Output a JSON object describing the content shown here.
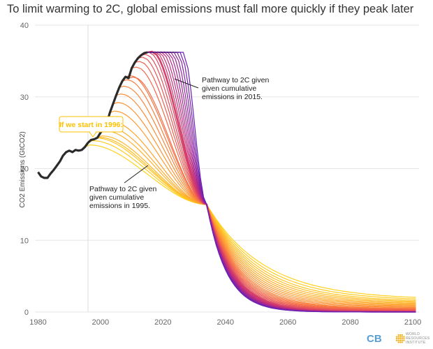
{
  "title": "To limit warming to 2C, global emissions must fall more quickly if they peak later",
  "colors": {
    "historical": "#2b2b2b",
    "pathway_early": "#ffd21f",
    "pathway_late": "#6a1fb5",
    "callout": "#ffc000",
    "grid": "#e6e6e6"
  },
  "chart_data": {
    "type": "line",
    "title": "To limit warming to 2C, global emissions must fall more quickly if they peak later",
    "xlabel": "",
    "ylabel": "CO2 Emissions (GtCO2)",
    "xlim": [
      1979,
      2102
    ],
    "ylim": [
      0,
      40
    ],
    "x_ticks": [
      "1980",
      "2000",
      "2020",
      "2040",
      "2060",
      "2080",
      "2100"
    ],
    "y_ticks": [
      "0",
      "10",
      "20",
      "30",
      "40"
    ],
    "grid": "horizontal",
    "historical": {
      "x": [
        1980,
        1981,
        1982,
        1983,
        1984,
        1985,
        1986,
        1987,
        1988,
        1989,
        1990,
        1991,
        1992,
        1993,
        1994,
        1995,
        1996,
        1997,
        1998,
        1999,
        2000,
        2001,
        2002,
        2003,
        2004,
        2005,
        2006,
        2007,
        2008,
        2009,
        2010,
        2011,
        2012,
        2013,
        2014,
        2015
      ],
      "y": [
        19.5,
        18.9,
        18.7,
        18.7,
        19.3,
        19.8,
        20.4,
        21.0,
        21.8,
        22.3,
        22.5,
        22.3,
        22.6,
        22.5,
        22.6,
        23.0,
        23.6,
        24.0,
        24.1,
        24.3,
        25.0,
        25.5,
        26.3,
        27.8,
        29.0,
        30.2,
        31.3,
        32.2,
        32.8,
        32.6,
        34.0,
        34.8,
        35.4,
        35.8,
        36.1,
        36.2
      ]
    },
    "pathways": {
      "start_years": [
        1995,
        1996,
        1997,
        1998,
        1999,
        2000,
        2001,
        2002,
        2003,
        2004,
        2005,
        2006,
        2007,
        2008,
        2009,
        2010,
        2011,
        2012,
        2013,
        2014,
        2015,
        2016,
        2017,
        2018,
        2019,
        2020,
        2021,
        2022,
        2023,
        2024,
        2025
      ],
      "peak_values": [
        23.0,
        23.6,
        24.0,
        24.1,
        24.3,
        25.0,
        25.5,
        26.3,
        27.8,
        29.0,
        30.2,
        31.3,
        32.2,
        32.8,
        32.6,
        34.0,
        34.8,
        35.4,
        35.8,
        36.1,
        36.2,
        36.2,
        36.2,
        36.2,
        36.2,
        36.2,
        36.2,
        36.2,
        36.2,
        36.2,
        36.2
      ],
      "crossing_point": {
        "x": 2034,
        "y": 15
      },
      "end_values_2100": [
        1.7,
        1.55,
        1.4,
        1.3,
        1.2,
        1.1,
        1.0,
        0.9,
        0.8,
        0.7,
        0.6,
        0.5,
        0.45,
        0.4,
        0.35,
        0.3,
        0.25,
        0.2,
        0.15,
        0.1,
        0.05,
        0.04,
        0.03,
        0.02,
        0.02,
        0.01,
        0.01,
        0.01,
        0.0,
        0.0,
        0.0
      ]
    },
    "annotations": [
      {
        "text": [
          "Pathway to 2C given",
          "given cumulative",
          "emissions in 2015."
        ]
      },
      {
        "text": [
          "Pathway to 2C given",
          "given cumulative",
          "emissions in 1995."
        ]
      },
      {
        "text": "If we start in 1996:"
      }
    ]
  },
  "logos": {
    "left": "CB",
    "right": [
      "WORLD",
      "RESOURCES",
      "INSTITUTE"
    ]
  }
}
